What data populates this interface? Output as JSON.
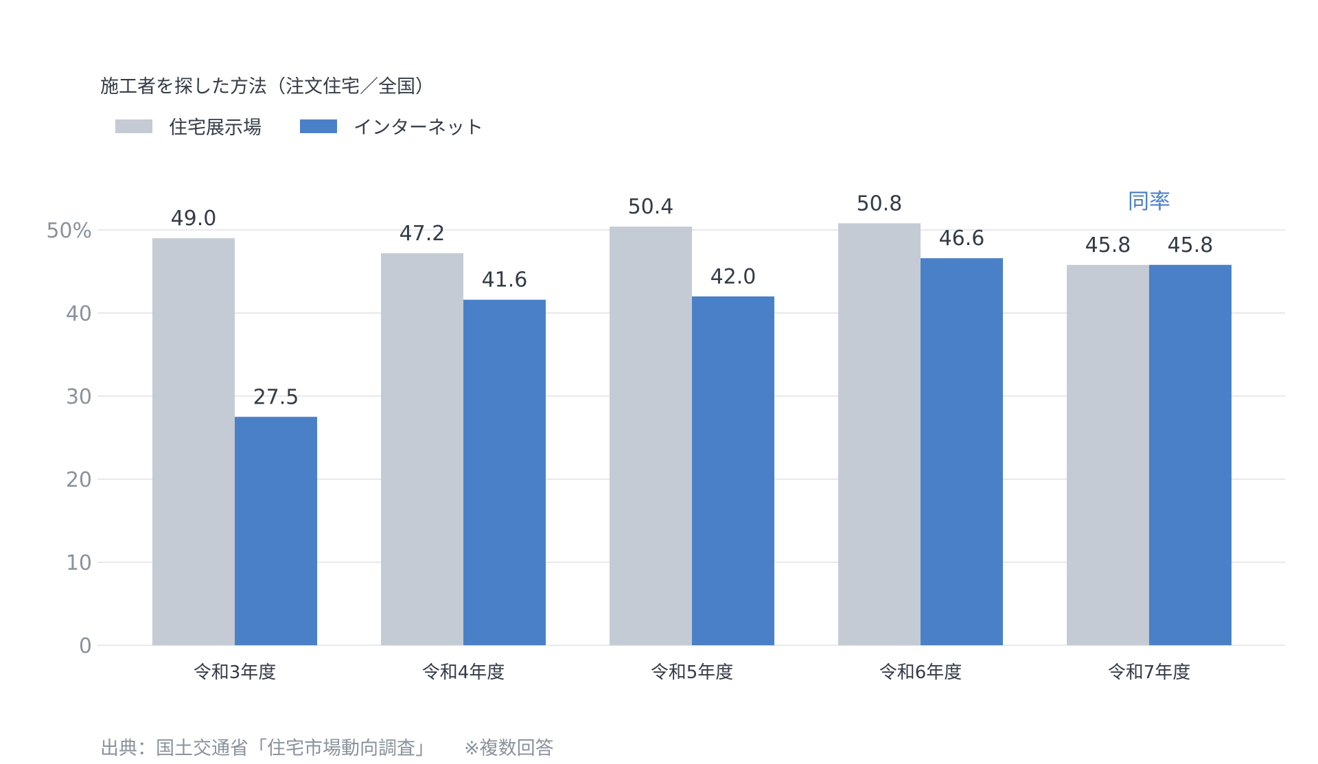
{
  "chart_data": {
    "type": "bar",
    "title": "施工者を探した方法（注文住宅／全国）",
    "categories": [
      "令和3年度",
      "令和4年度",
      "令和5年度",
      "令和6年度",
      "令和7年度"
    ],
    "series": [
      {
        "name": "住宅展示場",
        "color": "#c4cbd4",
        "values": [
          49.0,
          47.2,
          50.4,
          50.8,
          45.8
        ],
        "labels": [
          "49.0",
          "47.2",
          "50.4",
          "50.8",
          "45.8"
        ]
      },
      {
        "name": "インターネット",
        "color": "#4a80c8",
        "values": [
          27.5,
          41.6,
          42.0,
          46.6,
          45.8
        ],
        "labels": [
          "27.5",
          "41.6",
          "42.0",
          "46.6",
          "45.8"
        ]
      }
    ],
    "y_ticks": [
      0,
      10,
      20,
      30,
      40,
      50
    ],
    "y_tick_labels": [
      "0",
      "10",
      "20",
      "30",
      "40",
      "50%"
    ],
    "ylim": [
      0,
      50
    ],
    "grid": true,
    "legend_position": "top-left",
    "annotation": {
      "category": "令和7年度",
      "text": "同率",
      "color": "#4a80c8"
    },
    "xlabel": "",
    "ylabel": ""
  },
  "source": {
    "text": "出典：国土交通省「住宅市場動向調査」",
    "note": "※複数回答"
  },
  "colors": {
    "axis_text": "#8a929c",
    "label_text": "#333b47",
    "grid": "#e6e9ed"
  }
}
